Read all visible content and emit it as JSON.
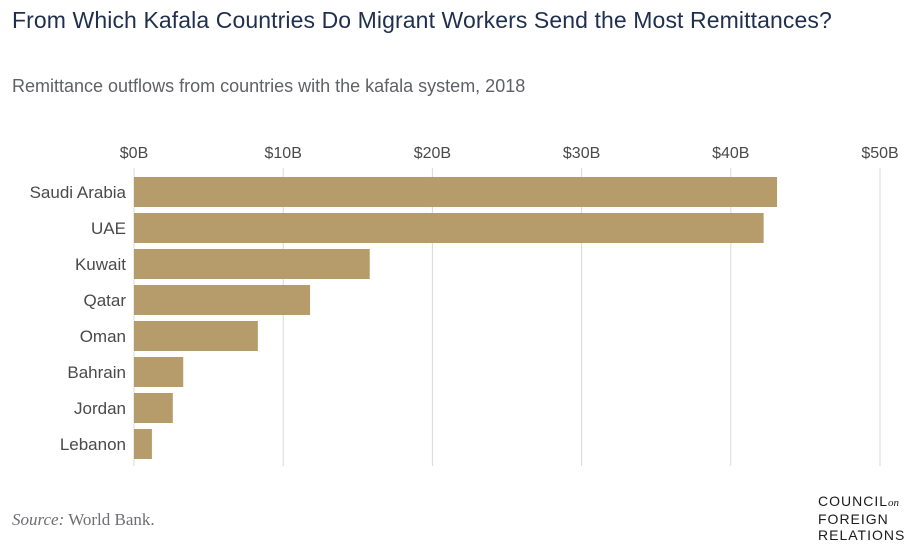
{
  "title": "From Which Kafala Countries Do Migrant Workers Send the Most Remittances?",
  "subtitle": "Remittance outflows from countries with the kafala system, 2018",
  "source_label": "Source:",
  "source_text": " World Bank.",
  "logo": {
    "line1": "COUNCIL",
    "on": "on",
    "line2": "FOREIGN",
    "line3": "RELATIONS"
  },
  "colors": {
    "bar": "#b59c6a",
    "grid": "#d9d9d9",
    "title": "#1f2f4d",
    "label": "#4a4a4a"
  },
  "chart_data": {
    "type": "bar",
    "orientation": "horizontal",
    "categories": [
      "Saudi Arabia",
      "UAE",
      "Kuwait",
      "Qatar",
      "Oman",
      "Bahrain",
      "Jordan",
      "Lebanon"
    ],
    "values": [
      43.1,
      42.2,
      15.8,
      11.8,
      8.3,
      3.3,
      2.6,
      1.2
    ],
    "unit": "billion USD",
    "xlim": [
      0,
      50
    ],
    "ticks": [
      0,
      10,
      20,
      30,
      40,
      50
    ],
    "tick_labels": [
      "$0B",
      "$10B",
      "$20B",
      "$30B",
      "$40B",
      "$50B"
    ],
    "axis_position": "top",
    "grid": true,
    "legend": "none"
  }
}
